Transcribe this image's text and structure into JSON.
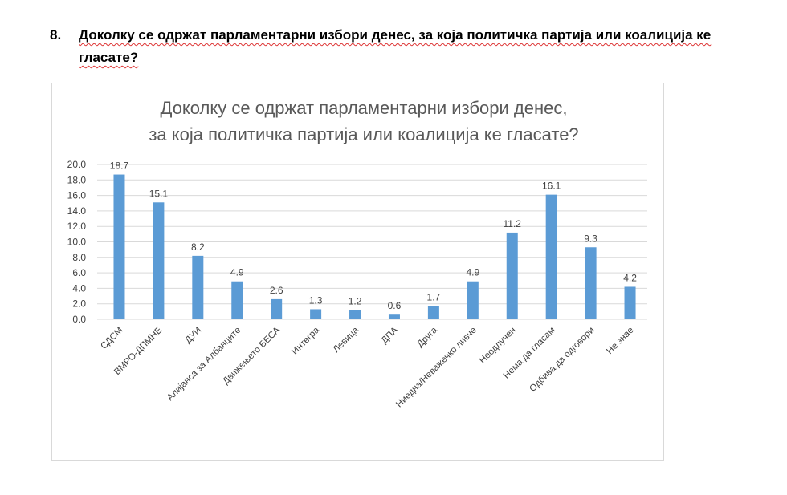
{
  "question": {
    "number": "8.",
    "text": "Доколку се одржат парламентарни избори денес, за која политичка партија или коалиција ке гласате?"
  },
  "chart_data": {
    "type": "bar",
    "title": [
      "Доколку се одржат парламентарни избори денес,",
      "за која политичка партија или коалиција ке гласате?"
    ],
    "categories": [
      "СДСМ",
      "ВМРО-ДПМНЕ",
      "ДУИ",
      "Алијанса за Албанците",
      "Движењето БЕСА",
      "Интегра",
      "Левица",
      "ДПА",
      "Друга",
      "Ниедна/Неважечко ливче",
      "Неодлучен",
      "Нема да гласам",
      "Одбива да одговори",
      "Не знае"
    ],
    "values": [
      18.7,
      15.1,
      8.2,
      4.9,
      2.6,
      1.3,
      1.2,
      0.6,
      1.7,
      4.9,
      11.2,
      16.1,
      9.3,
      4.2
    ],
    "value_labels": [
      "18.7",
      "15.1",
      "8.2",
      "4.9",
      "2.6",
      "1.3",
      "1.2",
      "0.6",
      "1.7",
      "4.9",
      "11.2",
      "16.1",
      "9.3",
      "4.2"
    ],
    "yticks": [
      "0.0",
      "2.0",
      "4.0",
      "6.0",
      "8.0",
      "10.0",
      "12.0",
      "14.0",
      "16.0",
      "18.0",
      "20.0"
    ],
    "ylim": [
      0,
      20
    ],
    "xlabel": "",
    "ylabel": "",
    "grid": true,
    "bar_color": "#5b9bd5"
  }
}
